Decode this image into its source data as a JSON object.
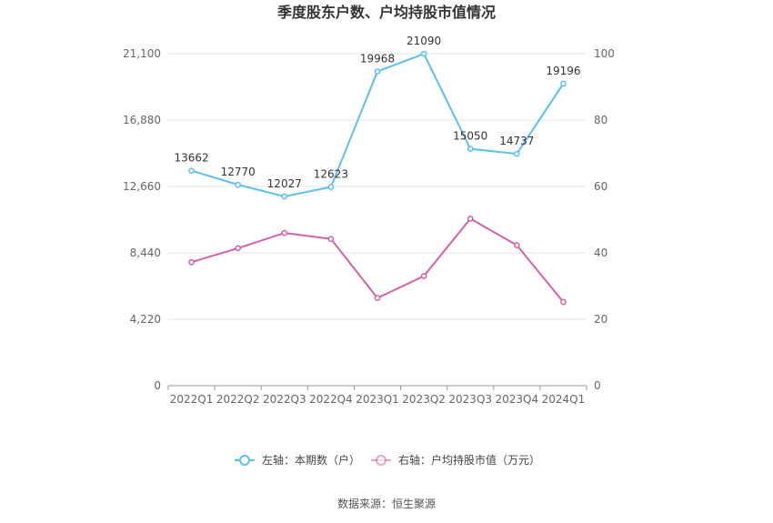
{
  "chart_data": {
    "type": "line",
    "title": "季度股东户数、户均持股市值情况",
    "categories": [
      "2022Q1",
      "2022Q2",
      "2022Q3",
      "2022Q4",
      "2023Q1",
      "2023Q2",
      "2023Q3",
      "2023Q4",
      "2024Q1"
    ],
    "left_axis": {
      "ticks": [
        "0",
        "4,220",
        "8,440",
        "12,660",
        "16,880",
        "21,100"
      ],
      "min": 0,
      "max": 21100
    },
    "right_axis": {
      "ticks": [
        "0",
        "20",
        "40",
        "60",
        "80",
        "100"
      ],
      "min": 0,
      "max": 100
    },
    "series": [
      {
        "name": "左轴：本期数（户）",
        "axis": "left",
        "color": "#5bc0eb",
        "values": [
          13662,
          12770,
          12027,
          12623,
          19968,
          21090,
          15050,
          14737,
          19196
        ],
        "labels": [
          "13662",
          "12770",
          "12027",
          "12623",
          "19968",
          "21090",
          "15050",
          "14737",
          "19196"
        ]
      },
      {
        "name": "右轴：户均持股市值（万元）",
        "axis": "right",
        "color": "#d460a6",
        "values": [
          37.2,
          41.4,
          46.0,
          44.2,
          26.4,
          33.0,
          50.3,
          42.3,
          25.2
        ]
      }
    ],
    "grid": true,
    "legend_position": "bottom"
  },
  "source": "数据来源：恒生聚源"
}
